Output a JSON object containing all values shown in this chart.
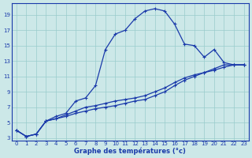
{
  "xlabel": "Graphe des températures (°c)",
  "background_color": "#cce8e8",
  "grid_color": "#99cccc",
  "line_color": "#1a3aaa",
  "ylim": [
    3,
    20
  ],
  "xlim": [
    -0.5,
    23.5
  ],
  "yticks": [
    3,
    5,
    7,
    9,
    11,
    13,
    15,
    17,
    19
  ],
  "xticks": [
    0,
    1,
    2,
    3,
    4,
    5,
    6,
    7,
    8,
    9,
    10,
    11,
    12,
    13,
    14,
    15,
    16,
    17,
    18,
    19,
    20,
    21,
    22,
    23
  ],
  "series1_x": [
    0,
    1,
    2,
    3,
    4,
    5,
    6,
    7,
    8,
    9,
    10,
    11,
    12,
    13,
    14,
    15,
    16,
    17,
    18,
    19,
    20,
    21,
    22,
    23
  ],
  "series1_y": [
    4.0,
    3.2,
    3.5,
    5.2,
    5.8,
    6.2,
    7.8,
    8.2,
    9.8,
    14.5,
    16.5,
    17.0,
    18.5,
    19.5,
    19.8,
    19.5,
    17.8,
    15.2,
    15.0,
    13.5,
    14.5,
    12.8,
    12.5,
    12.5
  ],
  "series2_x": [
    0,
    1,
    2,
    3,
    4,
    5,
    6,
    7,
    8,
    9,
    10,
    11,
    12,
    13,
    14,
    15,
    16,
    17,
    18,
    19,
    20,
    21,
    22,
    23
  ],
  "series2_y": [
    4.0,
    3.2,
    3.5,
    5.2,
    5.5,
    5.8,
    6.2,
    6.5,
    6.8,
    7.0,
    7.2,
    7.5,
    7.8,
    8.0,
    8.5,
    9.0,
    9.8,
    10.5,
    11.0,
    11.5,
    12.0,
    12.5,
    12.5,
    12.5
  ],
  "series3_x": [
    0,
    1,
    2,
    3,
    4,
    5,
    6,
    7,
    8,
    9,
    10,
    11,
    12,
    13,
    14,
    15,
    16,
    17,
    18,
    19,
    20,
    21,
    22,
    23
  ],
  "series3_y": [
    4.0,
    3.2,
    3.5,
    5.2,
    5.5,
    6.0,
    6.5,
    7.0,
    7.2,
    7.5,
    7.8,
    8.0,
    8.2,
    8.5,
    9.0,
    9.5,
    10.2,
    10.8,
    11.2,
    11.5,
    11.8,
    12.2,
    12.5,
    12.5
  ]
}
